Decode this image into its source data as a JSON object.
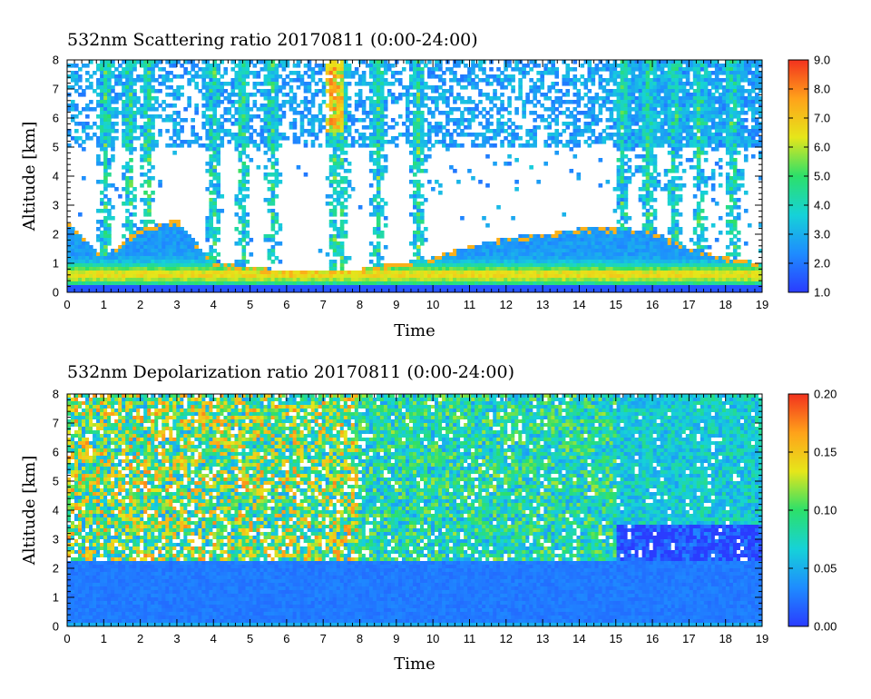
{
  "colors": {
    "colormap": [
      "#2a3cff",
      "#1e8cff",
      "#16d2d8",
      "#2ce06a",
      "#e6e61a",
      "#ffa21a",
      "#f2321e"
    ],
    "cloud_white": "#ffffff",
    "frame": "#000000"
  },
  "chart_data": [
    {
      "type": "heatmap",
      "title": "532nm Scattering ratio  20170811 (0:00-24:00)",
      "xlabel": "Time",
      "ylabel": "Altitude [km]",
      "xlim": [
        0,
        19
      ],
      "ylim": [
        0,
        8
      ],
      "x_ticks": [
        "0",
        "1",
        "2",
        "3",
        "4",
        "5",
        "6",
        "7",
        "8",
        "9",
        "10",
        "11",
        "12",
        "13",
        "14",
        "15",
        "16",
        "17",
        "18",
        "19"
      ],
      "y_ticks": [
        "0",
        "1",
        "2",
        "3",
        "4",
        "5",
        "6",
        "7",
        "8"
      ],
      "colorbar": {
        "min": 1.0,
        "max": 9.0,
        "ticks": [
          "1.0",
          "2.0",
          "3.0",
          "4.0",
          "5.0",
          "6.0",
          "7.0",
          "8.0",
          "9.0"
        ]
      },
      "features": {
        "boundary_layer_top_km": [
          [
            0,
            2.5
          ],
          [
            1,
            1.2
          ],
          [
            2,
            2.2
          ],
          [
            3,
            2.5
          ],
          [
            4,
            1.0
          ],
          [
            5,
            0.9
          ],
          [
            6,
            0.7
          ],
          [
            7,
            0.8
          ],
          [
            8,
            0.8
          ],
          [
            9,
            1.0
          ],
          [
            10,
            1.2
          ],
          [
            11,
            1.6
          ],
          [
            12,
            1.9
          ],
          [
            13,
            2.0
          ],
          [
            14,
            2.2
          ],
          [
            15,
            2.2
          ],
          [
            16,
            2.1
          ],
          [
            17,
            1.5
          ],
          [
            18,
            1.2
          ],
          [
            19,
            1.0
          ]
        ],
        "strong_backscatter_layer_km": [
          0.3,
          1.0
        ],
        "cirrus_band_km": [
          5.0,
          8.0
        ]
      }
    },
    {
      "type": "heatmap",
      "title": "532nm Depolarization ratio  20170811 (0:00-24:00)",
      "xlabel": "Time",
      "ylabel": "Altitude [km]",
      "xlim": [
        0,
        19
      ],
      "ylim": [
        0,
        8
      ],
      "x_ticks": [
        "0",
        "1",
        "2",
        "3",
        "4",
        "5",
        "6",
        "7",
        "8",
        "9",
        "10",
        "11",
        "12",
        "13",
        "14",
        "15",
        "16",
        "17",
        "18",
        "19"
      ],
      "y_ticks": [
        "0",
        "1",
        "2",
        "3",
        "4",
        "5",
        "6",
        "7",
        "8"
      ],
      "colorbar": {
        "min": 0.0,
        "max": 0.2,
        "ticks": [
          "0.00",
          "0.05",
          "0.10",
          "0.15",
          "0.20"
        ]
      },
      "features": {
        "low_depol_layer_top_km": 2.3,
        "high_depol_band_km": [
          2.5,
          8.0
        ]
      }
    }
  ]
}
